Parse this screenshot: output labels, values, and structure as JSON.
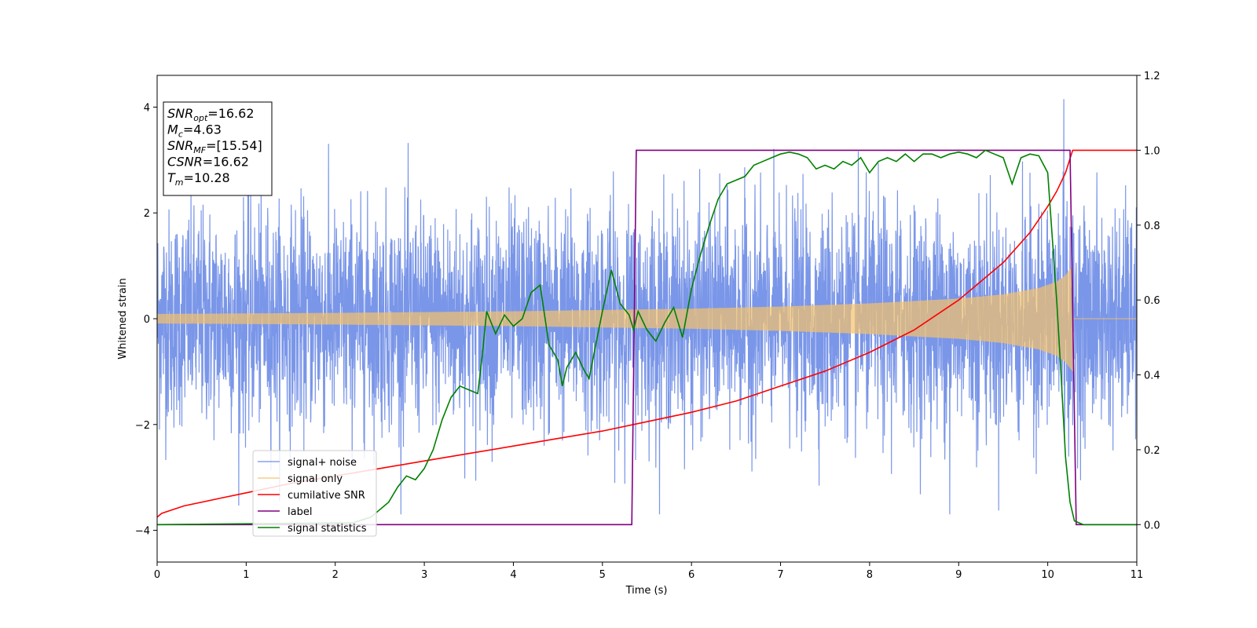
{
  "chart_data": {
    "type": "line",
    "xlabel": "Time (s)",
    "ylabel_left": "Whitened strain",
    "ylabel_right": "",
    "xlim": [
      0,
      11
    ],
    "ylim_left": [
      -4.6,
      4.6
    ],
    "ylim_right": [
      -0.1,
      1.2
    ],
    "x_ticks": [
      0,
      1,
      2,
      3,
      4,
      5,
      6,
      7,
      8,
      9,
      10,
      11
    ],
    "y_left_ticks": [
      -4,
      -2,
      0,
      2,
      4
    ],
    "y_right_ticks": [
      "0.0",
      "0.2",
      "0.4",
      "0.6",
      "0.8",
      "1.0",
      "1.2"
    ],
    "grid": false,
    "legend_position": "lower-left",
    "annotation": {
      "lines": [
        {
          "name": "SNR",
          "sub": "opt",
          "text": "=16.62"
        },
        {
          "name": "M",
          "sub": "c",
          "text": "=4.63"
        },
        {
          "name": "SNR",
          "sub": "MF",
          "text": "=[15.54]"
        },
        {
          "name": "CSNR",
          "sub": "",
          "text": "=16.62"
        },
        {
          "name": "T",
          "sub": "m",
          "text": "=10.28"
        }
      ]
    },
    "series": [
      {
        "name": "signal+ noise",
        "axis": "left",
        "color": "#6b8be6",
        "style": "noise",
        "x_range": [
          0,
          11
        ],
        "amplitude_typical": 1.3,
        "peak": {
          "x": 10.18,
          "y": 4.15
        },
        "min": {
          "x": 8.9,
          "y": -3.75
        }
      },
      {
        "name": "signal only",
        "axis": "left",
        "color": "#f5c26b",
        "style": "chirp",
        "x_range": [
          0,
          10.28
        ],
        "envelope": [
          [
            0,
            0.09
          ],
          [
            2,
            0.11
          ],
          [
            4,
            0.14
          ],
          [
            6,
            0.19
          ],
          [
            7,
            0.23
          ],
          [
            8,
            0.29
          ],
          [
            9,
            0.38
          ],
          [
            9.5,
            0.46
          ],
          [
            9.9,
            0.58
          ],
          [
            10.1,
            0.7
          ],
          [
            10.2,
            0.82
          ],
          [
            10.28,
            1.0
          ]
        ]
      },
      {
        "name": "cumilative SNR",
        "axis": "right",
        "color": "#ff0000",
        "x": [
          0,
          0.05,
          0.3,
          0.7,
          1.0,
          1.5,
          2.0,
          2.5,
          3.0,
          3.5,
          4.0,
          4.5,
          5.0,
          5.5,
          6.0,
          6.5,
          7.0,
          7.5,
          8.0,
          8.5,
          9.0,
          9.5,
          9.8,
          10.0,
          10.1,
          10.2,
          10.28,
          11.0
        ],
        "y": [
          0.02,
          0.03,
          0.05,
          0.07,
          0.085,
          0.11,
          0.13,
          0.15,
          0.17,
          0.19,
          0.21,
          0.23,
          0.25,
          0.275,
          0.3,
          0.33,
          0.37,
          0.41,
          0.46,
          0.52,
          0.6,
          0.7,
          0.78,
          0.85,
          0.89,
          0.94,
          1.0,
          1.0
        ]
      },
      {
        "name": "label",
        "axis": "right",
        "color": "#800080",
        "x": [
          0,
          5.33,
          5.38,
          10.25,
          10.32,
          11.0
        ],
        "y": [
          0,
          0,
          1,
          1,
          0,
          0
        ]
      },
      {
        "name": "signal statistics",
        "axis": "right",
        "color": "#008000",
        "x": [
          0,
          2.2,
          2.4,
          2.6,
          2.7,
          2.8,
          2.9,
          3.0,
          3.1,
          3.2,
          3.3,
          3.4,
          3.5,
          3.6,
          3.65,
          3.7,
          3.8,
          3.9,
          4.0,
          4.1,
          4.2,
          4.3,
          4.4,
          4.5,
          4.55,
          4.6,
          4.7,
          4.8,
          4.85,
          4.9,
          5.0,
          5.1,
          5.2,
          5.3,
          5.35,
          5.4,
          5.5,
          5.6,
          5.7,
          5.8,
          5.9,
          6.0,
          6.1,
          6.2,
          6.3,
          6.4,
          6.5,
          6.6,
          6.7,
          6.8,
          6.9,
          7.0,
          7.1,
          7.2,
          7.3,
          7.4,
          7.5,
          7.6,
          7.7,
          7.8,
          7.9,
          8.0,
          8.1,
          8.2,
          8.3,
          8.4,
          8.5,
          8.6,
          8.7,
          8.8,
          8.9,
          9.0,
          9.1,
          9.2,
          9.3,
          9.4,
          9.5,
          9.6,
          9.7,
          9.8,
          9.9,
          10.0,
          10.1,
          10.15,
          10.2,
          10.25,
          10.3,
          10.4,
          10.5,
          11.0
        ],
        "y": [
          0,
          0.005,
          0.02,
          0.06,
          0.1,
          0.13,
          0.12,
          0.15,
          0.2,
          0.28,
          0.34,
          0.37,
          0.36,
          0.35,
          0.45,
          0.57,
          0.51,
          0.56,
          0.53,
          0.55,
          0.62,
          0.64,
          0.48,
          0.44,
          0.37,
          0.42,
          0.46,
          0.41,
          0.39,
          0.45,
          0.57,
          0.68,
          0.59,
          0.56,
          0.52,
          0.57,
          0.52,
          0.49,
          0.54,
          0.58,
          0.5,
          0.63,
          0.72,
          0.8,
          0.87,
          0.91,
          0.92,
          0.93,
          0.96,
          0.97,
          0.98,
          0.99,
          0.995,
          0.99,
          0.98,
          0.95,
          0.96,
          0.95,
          0.97,
          0.96,
          0.98,
          0.94,
          0.97,
          0.98,
          0.97,
          0.99,
          0.97,
          0.99,
          0.99,
          0.98,
          0.99,
          0.995,
          0.99,
          0.98,
          1.0,
          0.99,
          0.98,
          0.91,
          0.98,
          0.99,
          0.985,
          0.94,
          0.6,
          0.4,
          0.18,
          0.06,
          0.01,
          0.0,
          0.0,
          0.0
        ]
      }
    ]
  }
}
